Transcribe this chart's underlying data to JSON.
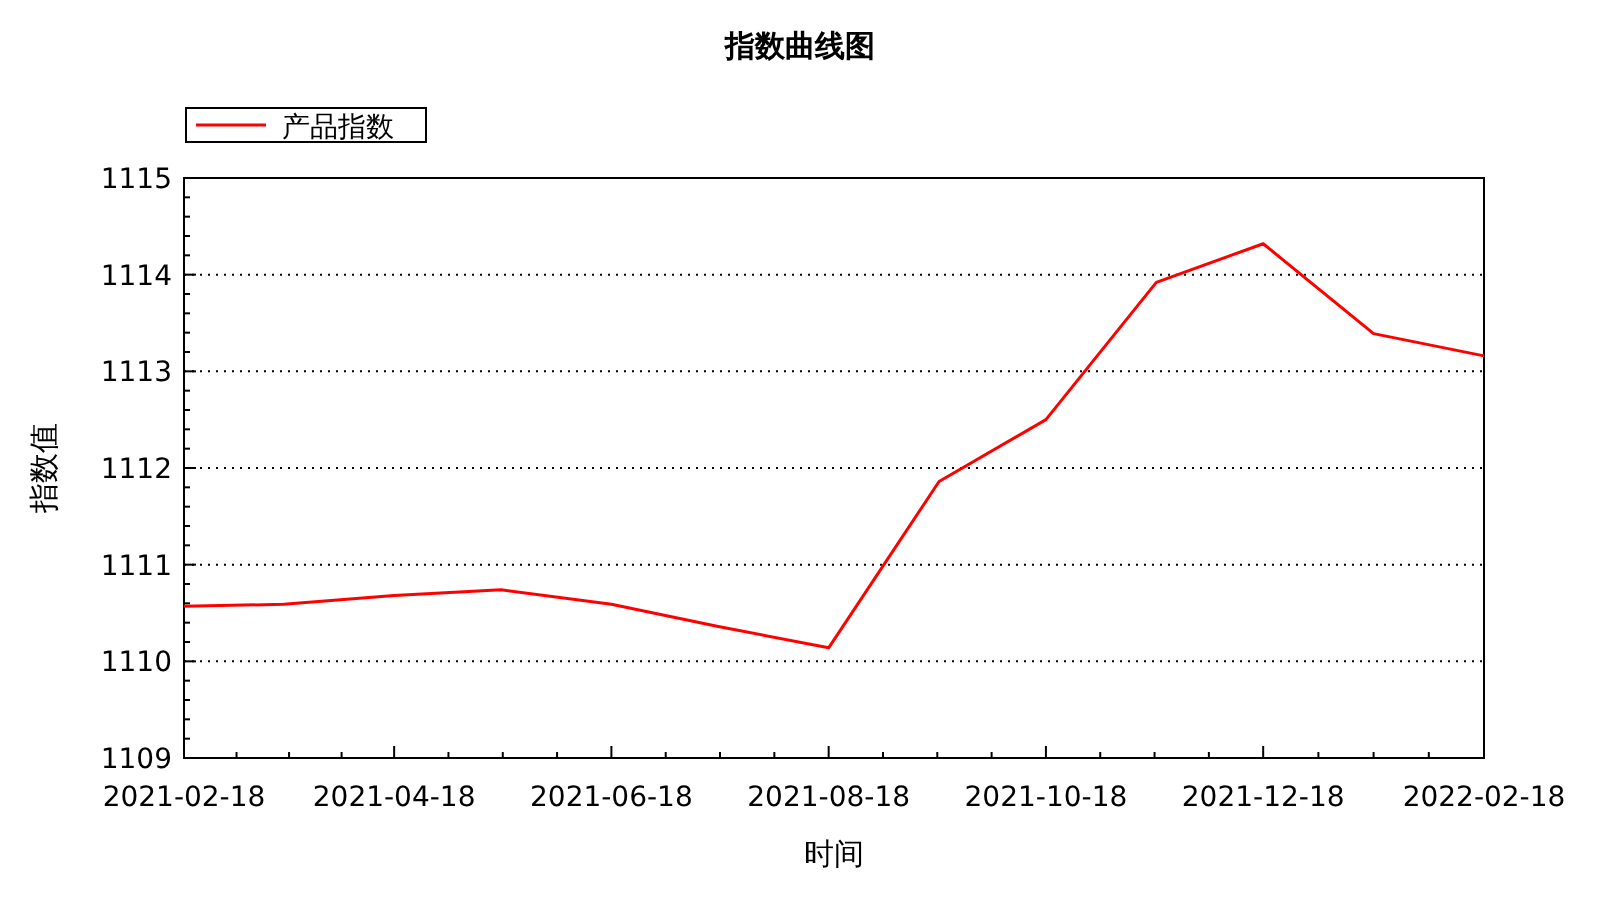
{
  "chart_data": {
    "type": "line",
    "title": "指数曲线图",
    "xlabel": "时间",
    "ylabel": "指数值",
    "x": [
      "2021-02-18",
      "2021-03-18",
      "2021-04-18",
      "2021-05-18",
      "2021-06-18",
      "2021-07-18",
      "2021-08-18",
      "2021-09-18",
      "2021-10-18",
      "2021-11-18",
      "2021-12-18",
      "2022-01-18",
      "2022-02-18"
    ],
    "series": [
      {
        "name": "产品指数",
        "color": "#ff0000",
        "values": [
          1110.57,
          1110.59,
          1110.68,
          1110.74,
          1110.59,
          1110.36,
          1110.14,
          1111.86,
          1112.5,
          1113.92,
          1114.32,
          1113.39,
          1113.16
        ]
      }
    ],
    "xlim": [
      "2021-02-18",
      "2022-02-18"
    ],
    "xticks": [
      "2021-02-18",
      "2021-04-18",
      "2021-06-18",
      "2021-08-18",
      "2021-10-18",
      "2021-12-18",
      "2022-02-18"
    ],
    "ylim": [
      1109,
      1115
    ],
    "yticks": [
      1109,
      1110,
      1111,
      1112,
      1113,
      1114,
      1115
    ],
    "grid": "y",
    "legend": "top left",
    "marker": "none",
    "line_style": "solid"
  }
}
